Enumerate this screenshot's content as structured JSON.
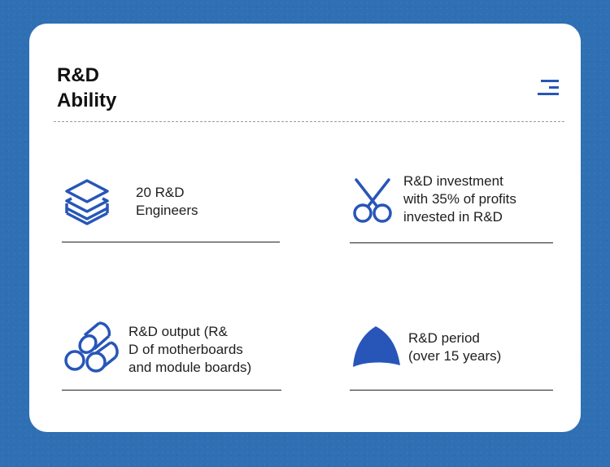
{
  "header": {
    "title_line1": "R&D",
    "title_line2": "Ability",
    "menu_icon": "menu-icon"
  },
  "features": [
    {
      "icon": "layers-icon",
      "lines": [
        "20 R&D",
        "Engineers"
      ]
    },
    {
      "icon": "scissors-icon",
      "lines": [
        "R&D investment",
        "with 35% of profits",
        "invested in R&D"
      ]
    },
    {
      "icon": "logs-stack-icon",
      "lines": [
        "R&D output (R&",
        "D of motherboards",
        "and module boards)"
      ]
    },
    {
      "icon": "dome-icon",
      "lines": [
        "R&D period",
        "(over 15 years)"
      ]
    }
  ],
  "colors": {
    "background": "#2f6fb3",
    "accent": "#2756b8",
    "card": "#ffffff"
  }
}
